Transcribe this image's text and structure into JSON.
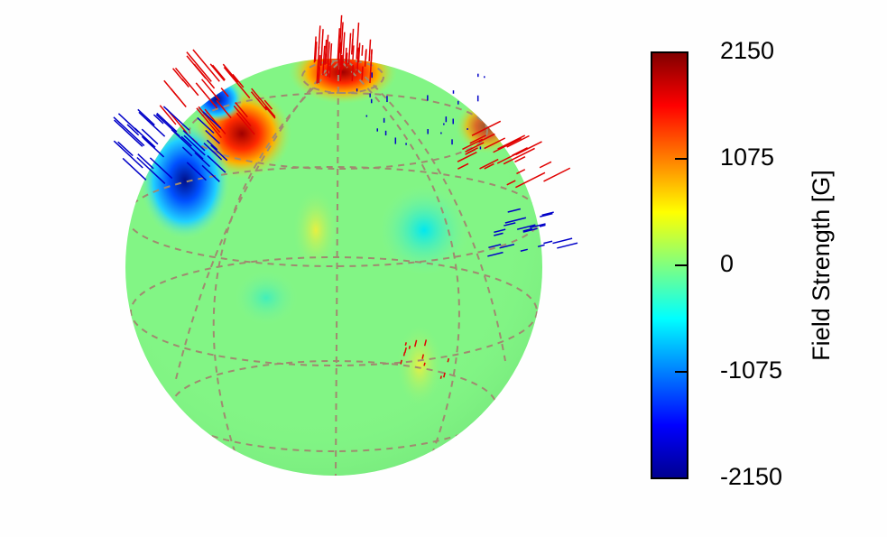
{
  "chart_data": {
    "type": "surface-map",
    "colorbar_label": "Field Strength [G]",
    "colormap": "jet",
    "clim": [
      -2150,
      2150
    ],
    "cticks": [
      2150,
      1075,
      0,
      -1075,
      -2150
    ]
  }
}
